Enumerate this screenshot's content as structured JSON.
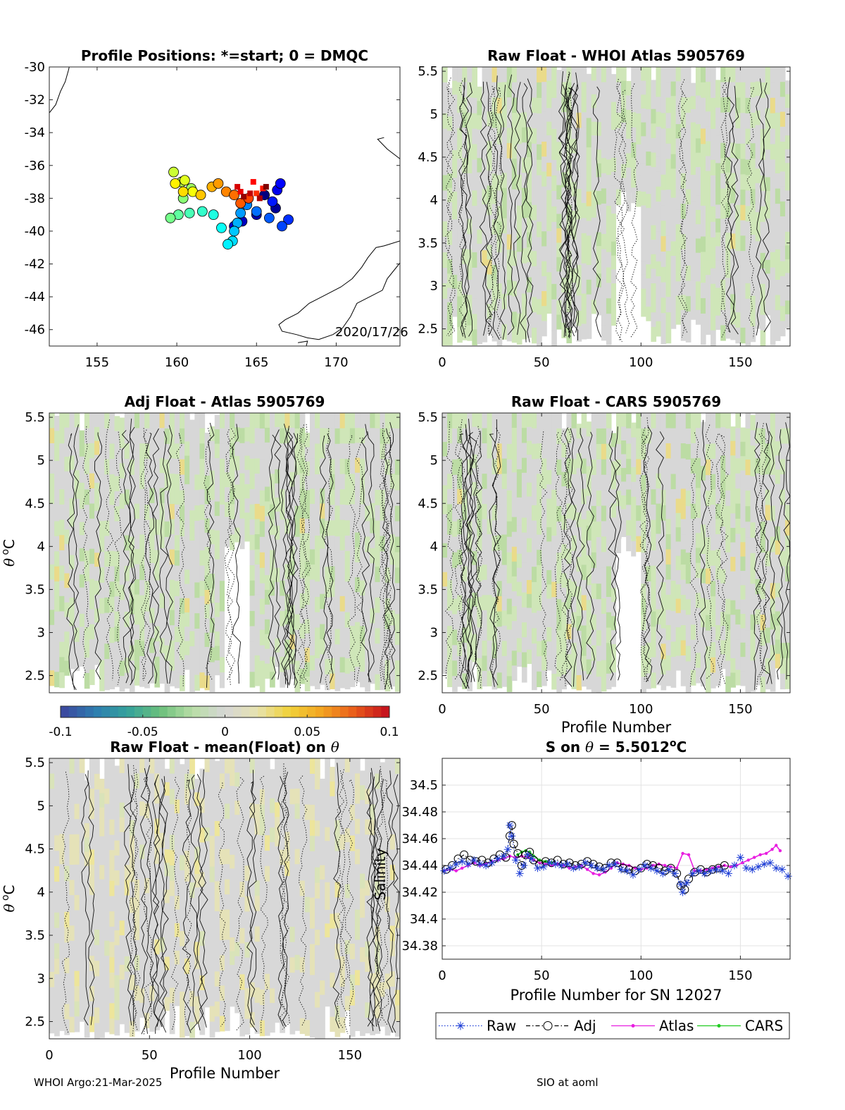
{
  "footer": {
    "left": "WHOI Argo:21-Mar-2025",
    "right": "SIO at aoml"
  },
  "colorbar": {
    "ticks": [
      "-0.1",
      "-0.05",
      "0",
      "0.05",
      "0.1"
    ],
    "range": [
      -0.1,
      0.1
    ],
    "colors": [
      "#3b4ba0",
      "#2e7fb0",
      "#36a39a",
      "#6cc07c",
      "#b9dea6",
      "#d6d6d6",
      "#e6e2b0",
      "#f1d23a",
      "#f3a521",
      "#ea5e1b",
      "#c7151d"
    ]
  },
  "chart_data": [
    {
      "id": "map",
      "type": "scatter",
      "title": "Profile Positions: *=start; 0 = DMQC",
      "xlim": [
        152,
        174
      ],
      "ylim": [
        -47,
        -30
      ],
      "xticks": [
        "155",
        "160",
        "165",
        "170"
      ],
      "yticks": [
        "-30",
        "-32",
        "-34",
        "-36",
        "-38",
        "-40",
        "-42",
        "-44",
        "-46"
      ],
      "annotation": "2020/17/26",
      "track": [
        {
          "lon": 165.5,
          "lat": -37.8
        },
        {
          "lon": 166.2,
          "lat": -38.6
        },
        {
          "lon": 165.0,
          "lat": -39.0
        },
        {
          "lon": 164.1,
          "lat": -39.4
        },
        {
          "lon": 163.6,
          "lat": -39.7
        },
        {
          "lon": 166.3,
          "lat": -37.5
        },
        {
          "lon": 166.5,
          "lat": -37.1
        },
        {
          "lon": 166.0,
          "lat": -38.2
        },
        {
          "lon": 167.0,
          "lat": -39.3
        },
        {
          "lon": 166.6,
          "lat": -39.7
        },
        {
          "lon": 165.8,
          "lat": -39.2
        },
        {
          "lon": 165.0,
          "lat": -38.8
        },
        {
          "lon": 164.4,
          "lat": -38.4
        },
        {
          "lon": 164.0,
          "lat": -38.9
        },
        {
          "lon": 163.8,
          "lat": -39.5
        },
        {
          "lon": 163.6,
          "lat": -40.0
        },
        {
          "lon": 163.5,
          "lat": -40.6
        },
        {
          "lon": 163.2,
          "lat": -40.8
        },
        {
          "lon": 162.8,
          "lat": -39.8
        },
        {
          "lon": 162.3,
          "lat": -39.0
        },
        {
          "lon": 161.6,
          "lat": -38.8
        },
        {
          "lon": 160.8,
          "lat": -38.9
        },
        {
          "lon": 160.1,
          "lat": -39.0
        },
        {
          "lon": 159.6,
          "lat": -39.2
        },
        {
          "lon": 160.4,
          "lat": -38.0
        },
        {
          "lon": 160.9,
          "lat": -37.4
        },
        {
          "lon": 160.3,
          "lat": -37.0
        },
        {
          "lon": 159.8,
          "lat": -36.4
        },
        {
          "lon": 160.5,
          "lat": -36.9
        },
        {
          "lon": 161.0,
          "lat": -37.6
        },
        {
          "lon": 159.9,
          "lat": -37.1
        },
        {
          "lon": 160.4,
          "lat": -37.6
        },
        {
          "lon": 161.5,
          "lat": -37.8
        },
        {
          "lon": 162.2,
          "lat": -37.3
        },
        {
          "lon": 162.6,
          "lat": -37.1
        },
        {
          "lon": 163.1,
          "lat": -37.6
        },
        {
          "lon": 163.6,
          "lat": -37.8
        },
        {
          "lon": 164.0,
          "lat": -38.3
        },
        {
          "lon": 164.5,
          "lat": -38.0
        },
        {
          "lon": 165.0,
          "lat": -37.7
        },
        {
          "lon": 165.4,
          "lat": -37.4
        },
        {
          "lon": 164.8,
          "lat": -37.0
        },
        {
          "lon": 164.0,
          "lat": -37.6
        },
        {
          "lon": 163.8,
          "lat": -37.3
        },
        {
          "lon": 164.6,
          "lat": -37.7
        },
        {
          "lon": 165.2,
          "lat": -38.0
        },
        {
          "lon": 164.2,
          "lat": -37.9
        },
        {
          "lon": 165.6,
          "lat": -37.3
        }
      ]
    },
    {
      "id": "raw-atlas",
      "type": "heatmap",
      "title": "Raw Float - WHOI Atlas  5905769",
      "xlim": [
        0,
        175
      ],
      "ylim": [
        2.3,
        5.55
      ],
      "xticks": [
        "0",
        "50",
        "100",
        "150"
      ],
      "yticks": [
        "2.5",
        "3",
        "3.5",
        "4",
        "4.5",
        "5",
        "5.5"
      ]
    },
    {
      "id": "adj-atlas",
      "type": "heatmap",
      "title": "Adj Float - Atlas  5905769",
      "ylabel": "θ °C",
      "xlim": [
        0,
        175
      ],
      "ylim": [
        2.3,
        5.55
      ],
      "yticks": [
        "2.5",
        "3",
        "3.5",
        "4",
        "4.5",
        "5",
        "5.5"
      ]
    },
    {
      "id": "raw-cars",
      "type": "heatmap",
      "title": "Raw Float - CARS  5905769",
      "xlabel": "Profile Number",
      "xlim": [
        0,
        175
      ],
      "ylim": [
        2.3,
        5.55
      ],
      "xticks": [
        "0",
        "50",
        "100",
        "150"
      ],
      "yticks": [
        "2.5",
        "3",
        "3.5",
        "4",
        "4.5",
        "5",
        "5.5"
      ]
    },
    {
      "id": "raw-mean",
      "type": "heatmap",
      "title": "Raw Float - mean(Float) on θ",
      "xlabel": "Profile Number",
      "ylabel": "θ °C",
      "xlim": [
        0,
        175
      ],
      "ylim": [
        2.3,
        5.55
      ],
      "xticks": [
        "0",
        "50",
        "100",
        "150"
      ],
      "yticks": [
        "2.5",
        "3",
        "3.5",
        "4",
        "4.5",
        "5",
        "5.5"
      ]
    },
    {
      "id": "salinity",
      "type": "line",
      "title": "S on θ = 5.5012°C",
      "xlabel": "Profile Number for SN 12027",
      "ylabel": "Salinity",
      "xlim": [
        0,
        175
      ],
      "ylim": [
        34.37,
        34.52
      ],
      "xticks": [
        "0",
        "50",
        "100",
        "150"
      ],
      "yticks": [
        "34.38",
        "34.4",
        "34.42",
        "34.44",
        "34.46",
        "34.48",
        "34.5"
      ],
      "grid": true,
      "legend": "bottom",
      "series": [
        {
          "name": "Raw",
          "color": "#1f3fd6",
          "marker": "star",
          "style": "dotted",
          "x": [
            1,
            4,
            7,
            10,
            13,
            16,
            19,
            22,
            25,
            28,
            31,
            33,
            34,
            35,
            37,
            39,
            41,
            43,
            45,
            48,
            51,
            54,
            57,
            60,
            63,
            66,
            69,
            72,
            75,
            78,
            81,
            84,
            87,
            90,
            93,
            96,
            99,
            102,
            105,
            108,
            111,
            114,
            117,
            120,
            121,
            123,
            126,
            129,
            132,
            135,
            138,
            141,
            144,
            147,
            150,
            153,
            156,
            159,
            162,
            165,
            168,
            171,
            174
          ],
          "y": [
            34.436,
            34.438,
            34.441,
            34.443,
            34.441,
            34.444,
            34.441,
            34.44,
            34.442,
            34.445,
            34.447,
            34.452,
            34.47,
            34.462,
            34.444,
            34.434,
            34.44,
            34.448,
            34.445,
            34.438,
            34.439,
            34.442,
            34.441,
            34.44,
            34.441,
            34.438,
            34.439,
            34.442,
            34.44,
            34.438,
            34.437,
            34.44,
            34.441,
            34.437,
            34.436,
            34.433,
            34.437,
            34.44,
            34.438,
            34.436,
            34.434,
            34.437,
            34.434,
            34.426,
            34.42,
            34.427,
            34.434,
            34.436,
            34.434,
            34.436,
            34.437,
            34.436,
            34.434,
            34.44,
            34.446,
            34.438,
            34.437,
            34.439,
            34.441,
            34.442,
            34.438,
            34.437,
            34.432
          ]
        },
        {
          "name": "Adj",
          "color": "#000000",
          "marker": "circle",
          "style": "dashdot",
          "x": [
            2,
            5,
            8,
            11,
            14,
            17,
            20,
            23,
            26,
            29,
            32,
            34,
            35,
            36,
            38,
            40,
            42,
            44,
            46,
            49,
            52,
            55,
            58,
            61,
            64,
            67,
            70,
            73,
            76,
            79,
            82,
            85,
            88,
            91,
            94,
            97,
            100,
            103,
            106,
            109,
            112,
            115,
            118,
            120,
            122,
            124,
            127,
            130,
            133,
            136,
            139,
            142
          ],
          "y": [
            34.437,
            34.44,
            34.445,
            34.448,
            34.444,
            34.443,
            34.444,
            34.442,
            34.445,
            34.448,
            34.446,
            34.462,
            34.47,
            34.456,
            34.449,
            34.44,
            34.448,
            34.45,
            34.444,
            34.441,
            34.443,
            34.442,
            34.444,
            34.441,
            34.442,
            34.44,
            34.441,
            34.443,
            34.441,
            34.439,
            34.438,
            34.442,
            34.442,
            34.438,
            34.437,
            34.436,
            34.438,
            34.441,
            34.44,
            34.438,
            34.436,
            34.438,
            34.434,
            34.425,
            34.422,
            34.43,
            34.435,
            34.437,
            34.435,
            34.437,
            34.438,
            34.44
          ]
        },
        {
          "name": "Atlas",
          "color": "#e81fe0",
          "marker": "dot",
          "style": "solid",
          "x": [
            1,
            4,
            7,
            10,
            13,
            16,
            19,
            22,
            25,
            28,
            31,
            34,
            37,
            40,
            43,
            46,
            49,
            52,
            55,
            58,
            61,
            64,
            67,
            70,
            73,
            76,
            79,
            82,
            85,
            88,
            91,
            94,
            97,
            100,
            103,
            106,
            109,
            112,
            115,
            118,
            121,
            124,
            127,
            130,
            133,
            136,
            139,
            142,
            145,
            148,
            151,
            154,
            157,
            160,
            163,
            166,
            168,
            170
          ],
          "y": [
            34.436,
            34.437,
            34.436,
            34.438,
            34.44,
            34.442,
            34.44,
            34.441,
            34.443,
            34.444,
            34.445,
            34.447,
            34.446,
            34.447,
            34.446,
            34.444,
            34.442,
            34.441,
            34.44,
            34.441,
            34.44,
            34.438,
            34.439,
            34.44,
            34.437,
            34.434,
            34.433,
            34.435,
            34.438,
            34.442,
            34.441,
            34.44,
            34.438,
            34.437,
            34.438,
            34.44,
            34.441,
            34.44,
            34.439,
            34.438,
            34.449,
            34.448,
            34.436,
            34.436,
            34.437,
            34.438,
            34.439,
            34.44,
            34.439,
            34.44,
            34.442,
            34.444,
            34.446,
            34.448,
            34.449,
            34.452,
            34.455,
            34.451
          ]
        },
        {
          "name": "CARS",
          "color": "#22cc22",
          "marker": "dot",
          "style": "solid",
          "x": [
            38,
            40,
            42,
            44,
            46,
            49,
            52,
            55
          ],
          "y": [
            34.448,
            34.45,
            34.451,
            34.45,
            34.447,
            34.444,
            34.443,
            34.442
          ]
        }
      ]
    }
  ]
}
